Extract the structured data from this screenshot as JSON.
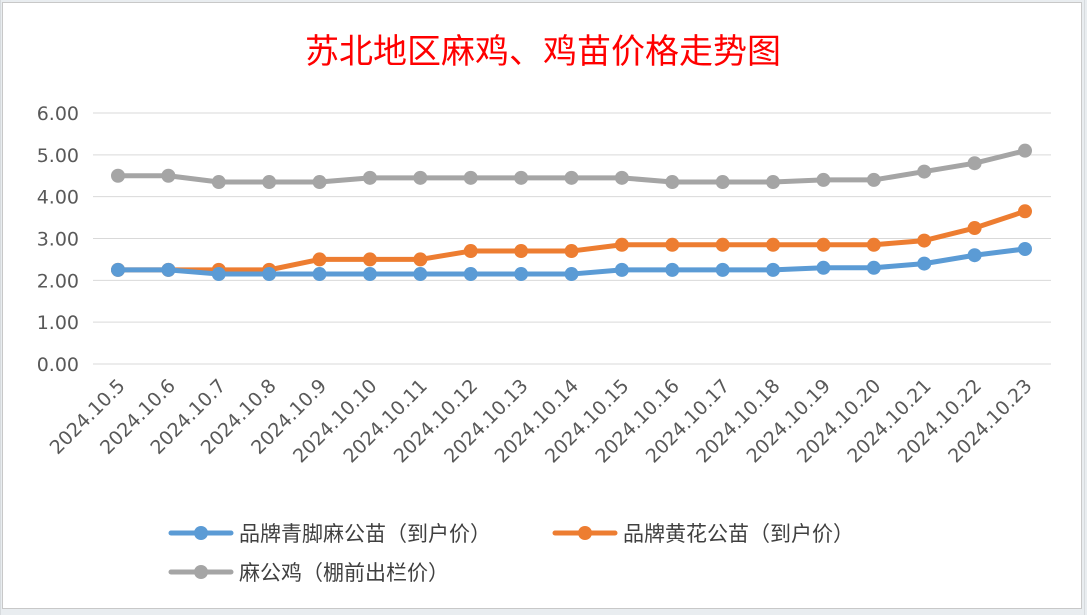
{
  "chart_data": {
    "type": "line",
    "title": "苏北地区麻鸡、鸡苗价格走势图",
    "xlabel": "",
    "ylabel": "",
    "ylim": [
      0,
      6
    ],
    "yticks": [
      "0.00",
      "1.00",
      "2.00",
      "3.00",
      "4.00",
      "5.00",
      "6.00"
    ],
    "grid": true,
    "legend_position": "bottom",
    "categories": [
      "2024.10.5",
      "2024.10.6",
      "2024.10.7",
      "2024.10.8",
      "2024.10.9",
      "2024.10.10",
      "2024.10.11",
      "2024.10.12",
      "2024.10.13",
      "2024.10.14",
      "2024.10.15",
      "2024.10.16",
      "2024.10.17",
      "2024.10.18",
      "2024.10.19",
      "2024.10.20",
      "2024.10.21",
      "2024.10.22",
      "2024.10.23"
    ],
    "series": [
      {
        "name": "品牌青脚麻公苗（到户价）",
        "color": "#5b9bd5",
        "values": [
          2.25,
          2.25,
          2.15,
          2.15,
          2.15,
          2.15,
          2.15,
          2.15,
          2.15,
          2.15,
          2.25,
          2.25,
          2.25,
          2.25,
          2.3,
          2.3,
          2.4,
          2.6,
          2.75
        ]
      },
      {
        "name": "品牌黄花公苗（到户价）",
        "color": "#ed7d31",
        "values": [
          2.25,
          2.25,
          2.25,
          2.25,
          2.5,
          2.5,
          2.5,
          2.7,
          2.7,
          2.7,
          2.85,
          2.85,
          2.85,
          2.85,
          2.85,
          2.85,
          2.95,
          3.25,
          3.65
        ]
      },
      {
        "name": "麻公鸡（棚前出栏价）",
        "color": "#a5a5a5",
        "values": [
          4.5,
          4.5,
          4.35,
          4.35,
          4.35,
          4.45,
          4.45,
          4.45,
          4.45,
          4.45,
          4.45,
          4.35,
          4.35,
          4.35,
          4.4,
          4.4,
          4.6,
          4.8,
          5.1
        ]
      }
    ]
  }
}
